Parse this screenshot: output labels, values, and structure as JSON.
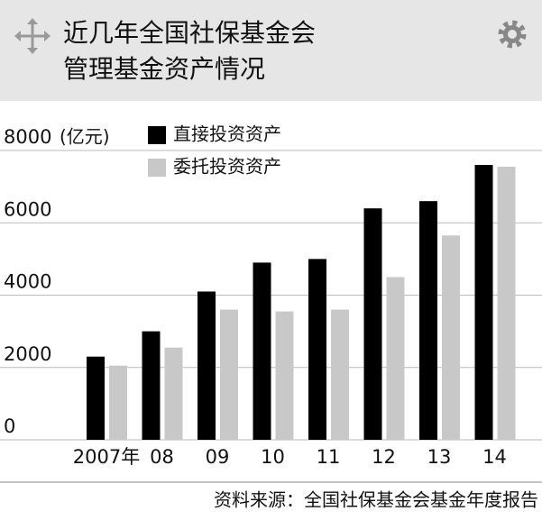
{
  "chart_data": {
    "type": "bar",
    "title": [
      "近几年全国社保基金会",
      "管理基金资产情况"
    ],
    "unit": "(亿元)",
    "categories": [
      "2007年",
      "08",
      "09",
      "10",
      "11",
      "12",
      "13",
      "14"
    ],
    "series": [
      {
        "name": "直接投资资产",
        "color": "#000000",
        "values": [
          2300,
          3000,
          4100,
          4900,
          5000,
          6400,
          6600,
          7600
        ]
      },
      {
        "name": "委托投资资产",
        "color": "#c8c8c8",
        "values": [
          2050,
          2550,
          3600,
          3550,
          3600,
          4500,
          5650,
          7550
        ]
      }
    ],
    "ylim": [
      0,
      8000
    ],
    "yticks": [
      0,
      2000,
      4000,
      6000,
      8000
    ],
    "grid": true,
    "source": "资料来源：全国社保基金会基金年度报告"
  }
}
